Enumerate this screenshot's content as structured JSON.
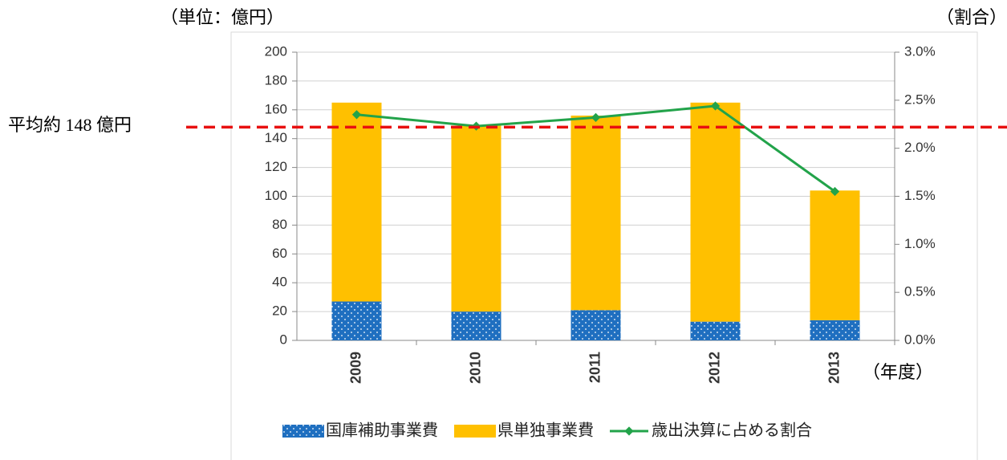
{
  "chart_data": {
    "type": "bar",
    "stacked": true,
    "unit_label": "（単位：億円）",
    "y2_unit_label": "（割合）",
    "x_label": "（年度）",
    "average_label": "平均約 148 億円",
    "average_line": 148,
    "average_color": "#e81010",
    "categories": [
      "2009",
      "2010",
      "2011",
      "2012",
      "2013"
    ],
    "series": [
      {
        "name": "国庫補助事業費",
        "color": "#1f6fc0",
        "type": "bar",
        "values": [
          27,
          20,
          21,
          13,
          14
        ]
      },
      {
        "name": "県単独事業費",
        "color": "#ffc000",
        "type": "bar",
        "values": [
          138,
          129,
          135,
          152,
          90
        ]
      },
      {
        "name": "歳出決算に占める割合",
        "color": "#22a34a",
        "type": "line",
        "axis": "y2",
        "values": [
          2.35,
          2.23,
          2.32,
          2.44,
          1.55
        ]
      }
    ],
    "ylim": [
      0,
      200
    ],
    "yticks": [
      0,
      20,
      40,
      60,
      80,
      100,
      120,
      140,
      160,
      180,
      200
    ],
    "y2lim": [
      0,
      3.0
    ],
    "y2ticks": [
      {
        "value": 0,
        "label": "0.0%"
      },
      {
        "value": 0.5,
        "label": "0.5%"
      },
      {
        "value": 1.0,
        "label": "1.0%"
      },
      {
        "value": 1.5,
        "label": "1.5%"
      },
      {
        "value": 2.0,
        "label": "2.0%"
      },
      {
        "value": 2.5,
        "label": "2.5%"
      },
      {
        "value": 3.0,
        "label": "3.0%"
      }
    ],
    "grid": true
  }
}
